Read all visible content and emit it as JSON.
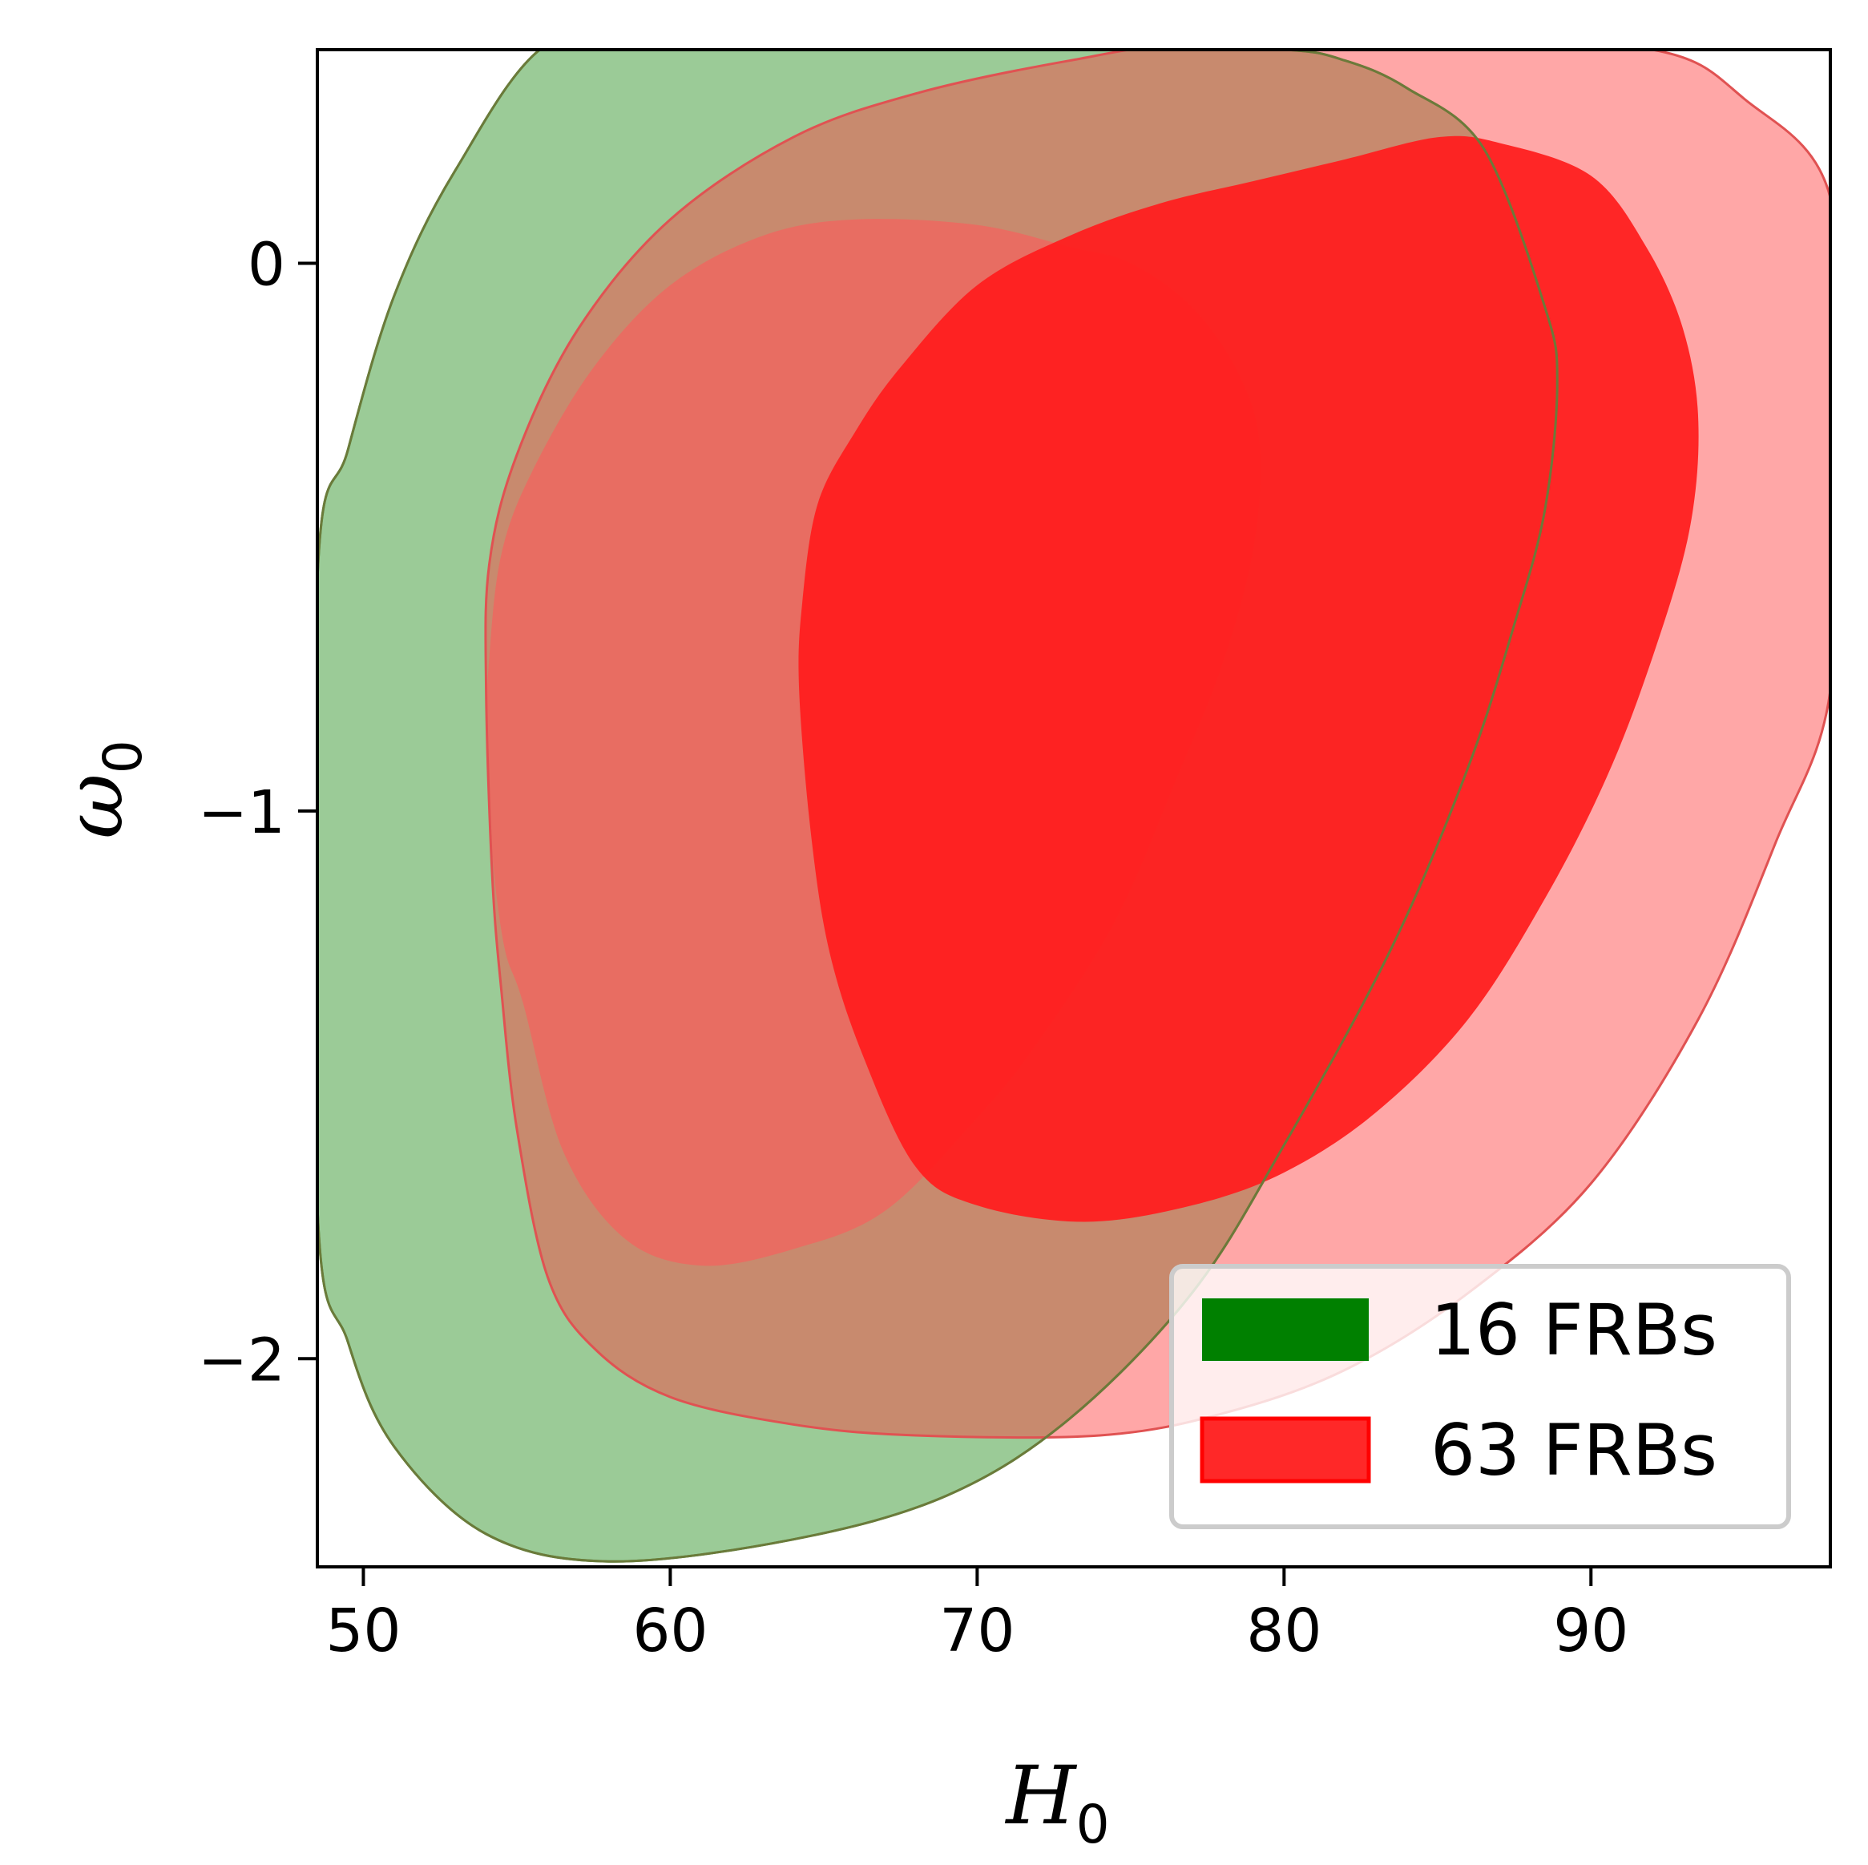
{
  "chart_data": {
    "type": "contour",
    "xlabel_main": "H",
    "xlabel_sub": "0",
    "ylabel_main": "ω",
    "ylabel_sub": "0",
    "xlim": [
      48.5,
      97.8
    ],
    "ylim": [
      -2.38,
      0.39
    ],
    "xticks": [
      50,
      60,
      70,
      80,
      90
    ],
    "yticks": [
      0,
      -1,
      -2
    ],
    "ytick_labels": [
      "0",
      "−1",
      "−2"
    ],
    "legend_position": "lower-right",
    "grid": false,
    "series": [
      {
        "name": "16 FRBs",
        "color": "#008000",
        "contours": [
          {
            "level": "2-sigma",
            "points": [
              [
                48.5,
                -0.58
              ],
              [
                49.5,
                -0.34
              ],
              [
                51,
                -0.06
              ],
              [
                53,
                0.17
              ],
              [
                56,
                0.4
              ],
              [
                59.5,
                0.39
              ],
              [
                65,
                0.39
              ],
              [
                75,
                0.39
              ],
              [
                80,
                0.39
              ],
              [
                82,
                0.37
              ],
              [
                84,
                0.32
              ],
              [
                86.5,
                0.21
              ],
              [
                88.5,
                -0.08
              ],
              [
                88.9,
                -0.22
              ],
              [
                88.5,
                -0.45
              ],
              [
                87.5,
                -0.66
              ],
              [
                86,
                -0.92
              ],
              [
                83.5,
                -1.25
              ],
              [
                80,
                -1.61
              ],
              [
                77,
                -1.88
              ],
              [
                73,
                -2.11
              ],
              [
                69,
                -2.25
              ],
              [
                64,
                -2.33
              ],
              [
                58,
                -2.37
              ],
              [
                54,
                -2.32
              ],
              [
                51,
                -2.16
              ],
              [
                49.5,
                -1.97
              ],
              [
                48.5,
                -1.72
              ]
            ]
          },
          {
            "level": "1-sigma",
            "points": [
              [
                54,
                -0.88
              ],
              [
                54.1,
                -0.72
              ],
              [
                54.5,
                -0.53
              ],
              [
                55.5,
                -0.38
              ],
              [
                57.5,
                -0.19
              ],
              [
                60,
                -0.04
              ],
              [
                63,
                0.05
              ],
              [
                66,
                0.08
              ],
              [
                70,
                0.07
              ],
              [
                73,
                0.03
              ],
              [
                75,
                0
              ],
              [
                77,
                -0.08
              ],
              [
                78.5,
                -0.2
              ],
              [
                79.2,
                -0.33
              ],
              [
                79,
                -0.52
              ],
              [
                78,
                -0.73
              ],
              [
                76.5,
                -0.94
              ],
              [
                74.5,
                -1.2
              ],
              [
                72,
                -1.42
              ],
              [
                70,
                -1.56
              ],
              [
                67,
                -1.73
              ],
              [
                64,
                -1.8
              ],
              [
                61,
                -1.83
              ],
              [
                58.5,
                -1.78
              ],
              [
                56.5,
                -1.62
              ],
              [
                55.2,
                -1.35
              ],
              [
                54.6,
                -1.25
              ],
              [
                54.2,
                -1.08
              ]
            ]
          }
        ]
      },
      {
        "name": "63 FRBs",
        "color": "#ff2020",
        "contours": [
          {
            "level": "2-sigma",
            "points": [
              [
                54,
                -0.78
              ],
              [
                54.1,
                -0.55
              ],
              [
                55,
                -0.35
              ],
              [
                57,
                -0.12
              ],
              [
                60,
                0.08
              ],
              [
                64,
                0.23
              ],
              [
                68,
                0.31
              ],
              [
                73,
                0.37
              ],
              [
                77,
                0.4
              ],
              [
                85,
                0.4
              ],
              [
                92,
                0.39
              ],
              [
                95,
                0.3
              ],
              [
                97.8,
                0.12
              ],
              [
                97.8,
                -0.32
              ],
              [
                97.8,
                -0.78
              ],
              [
                96,
                -1.06
              ],
              [
                93.5,
                -1.38
              ],
              [
                90,
                -1.68
              ],
              [
                86,
                -1.88
              ],
              [
                82,
                -2.02
              ],
              [
                78,
                -2.1
              ],
              [
                74,
                -2.14
              ],
              [
                68,
                -2.14
              ],
              [
                64,
                -2.12
              ],
              [
                60,
                -2.07
              ],
              [
                57.5,
                -1.98
              ],
              [
                56,
                -1.85
              ],
              [
                55,
                -1.58
              ],
              [
                54.5,
                -1.33
              ],
              [
                54.2,
                -1.12
              ]
            ]
          },
          {
            "level": "1-sigma",
            "points": [
              [
                64.2,
                -0.78
              ],
              [
                64.3,
                -0.62
              ],
              [
                64.8,
                -0.44
              ],
              [
                66,
                -0.31
              ],
              [
                67.5,
                -0.19
              ],
              [
                70,
                -0.04
              ],
              [
                73,
                0.05
              ],
              [
                76,
                0.11
              ],
              [
                79,
                0.15
              ],
              [
                82,
                0.19
              ],
              [
                85,
                0.23
              ],
              [
                87,
                0.22
              ],
              [
                90,
                0.16
              ],
              [
                91.8,
                0.03
              ],
              [
                93,
                -0.12
              ],
              [
                93.5,
                -0.29
              ],
              [
                93.2,
                -0.49
              ],
              [
                92,
                -0.72
              ],
              [
                90.5,
                -0.94
              ],
              [
                88.5,
                -1.16
              ],
              [
                86,
                -1.38
              ],
              [
                83,
                -1.55
              ],
              [
                80,
                -1.66
              ],
              [
                77,
                -1.72
              ],
              [
                73.5,
                -1.75
              ],
              [
                70,
                -1.72
              ],
              [
                68,
                -1.65
              ],
              [
                66.3,
                -1.45
              ],
              [
                65.2,
                -1.26
              ],
              [
                64.6,
                -1.05
              ]
            ]
          }
        ]
      }
    ]
  }
}
